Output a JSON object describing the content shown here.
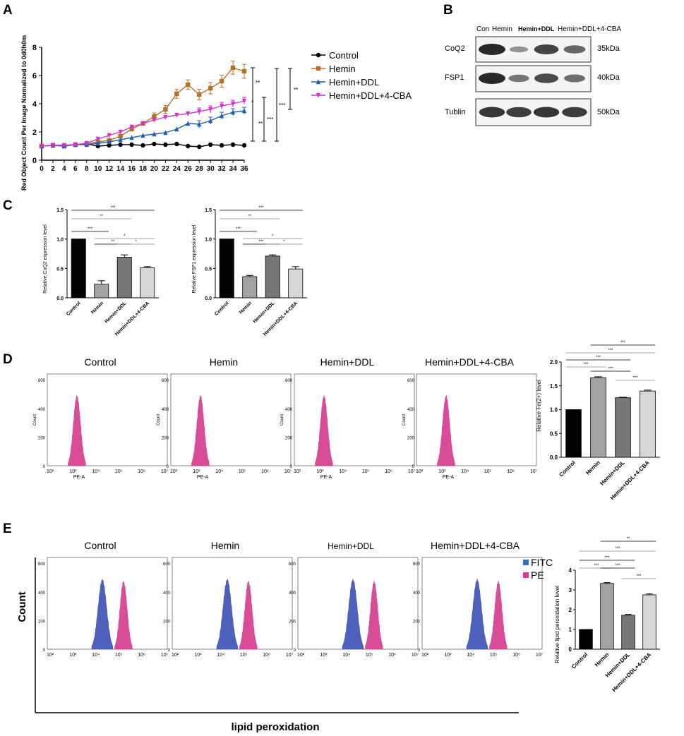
{
  "panel_labels": {
    "a": "A",
    "b": "B",
    "c": "C",
    "d": "D",
    "e": "E"
  },
  "colors": {
    "control": "#000000",
    "hemin": "#b3722a",
    "hemin_ddl": "#1f5fb4",
    "hemin_ddl_cba": "#d036c8",
    "hist_pink": "#d5398d",
    "hist_blue": "#3a4fb4",
    "bar_control": "#000000",
    "bar_hemin": "#a3a3a3",
    "bar_ddl": "#777777",
    "bar_cba": "#d7d7d7"
  },
  "chart_data": [
    {
      "id": "A",
      "type": "line",
      "ylabel": "Red Object Count Per Image Normalized to 0d0h0m",
      "xlabel": "",
      "x": [
        0,
        2,
        4,
        6,
        8,
        10,
        12,
        14,
        16,
        18,
        20,
        22,
        24,
        26,
        28,
        30,
        32,
        34,
        36
      ],
      "xlim": [
        0,
        36
      ],
      "ylim": [
        0,
        8
      ],
      "yticks": [
        "0",
        "2",
        "4",
        "6",
        "8"
      ],
      "xticks": [
        "0",
        "2",
        "4",
        "6",
        "8",
        "10",
        "12",
        "14",
        "16",
        "18",
        "20",
        "22",
        "24",
        "26",
        "28",
        "30",
        "32",
        "34",
        "36"
      ],
      "series": [
        {
          "name": "Control",
          "marker": "circle",
          "color_key": "control",
          "values": [
            1.0,
            1.05,
            1.05,
            1.1,
            1.15,
            1.0,
            1.05,
            1.1,
            1.1,
            1.05,
            1.15,
            1.1,
            1.15,
            1.0,
            0.95,
            1.1,
            1.05,
            1.1,
            1.05
          ]
        },
        {
          "name": "Hemin",
          "marker": "square",
          "color_key": "hemin",
          "values": [
            1.0,
            1.05,
            1.0,
            1.1,
            1.15,
            1.3,
            1.4,
            1.7,
            2.2,
            2.6,
            3.1,
            3.6,
            4.7,
            5.35,
            4.65,
            5.1,
            5.6,
            6.55,
            6.3
          ]
        },
        {
          "name": "Hemin+DDL",
          "marker": "triangle",
          "color_key": "hemin_ddl",
          "values": [
            1.0,
            1.05,
            1.0,
            1.1,
            1.1,
            1.2,
            1.3,
            1.45,
            1.6,
            1.75,
            1.85,
            1.95,
            2.2,
            2.6,
            2.55,
            2.8,
            3.15,
            3.4,
            3.5
          ]
        },
        {
          "name": "Hemin+DDL+4-CBA",
          "marker": "triangle-down",
          "color_key": "hemin_ddl_cba",
          "values": [
            1.0,
            1.05,
            1.05,
            1.1,
            1.2,
            1.5,
            1.75,
            2.0,
            2.35,
            2.6,
            2.85,
            3.05,
            3.2,
            3.3,
            3.45,
            3.6,
            3.85,
            4.0,
            4.2
          ]
        }
      ],
      "annotations": [
        "**",
        "*",
        "**",
        "***",
        "***",
        "**"
      ]
    },
    {
      "id": "C1",
      "type": "bar",
      "ylabel": "Relative CoQ2 expression level",
      "categories": [
        "Control",
        "Hemin",
        "Hemin+DDL",
        "Hemin+DDL+4-CBA"
      ],
      "values": [
        1.0,
        0.23,
        0.69,
        0.51
      ],
      "errors": [
        0,
        0.06,
        0.04,
        0.02
      ],
      "ylim": [
        0,
        1.5
      ],
      "yticks": [
        "0.0",
        "0.5",
        "1.0",
        "1.5"
      ],
      "significance": [
        "***",
        "**",
        "***",
        "*",
        "**",
        "*"
      ]
    },
    {
      "id": "C2",
      "type": "bar",
      "ylabel": "Relative FSP1 expression level",
      "categories": [
        "Control",
        "Hemin",
        "Hemin+DDL",
        "Hemin+DDL+4-CBA"
      ],
      "values": [
        1.0,
        0.36,
        0.71,
        0.49
      ],
      "errors": [
        0,
        0.02,
        0.02,
        0.04
      ],
      "ylim": [
        0,
        1.5
      ],
      "yticks": [
        "0.0",
        "0.5",
        "1.0",
        "1.5"
      ],
      "significance": [
        "***",
        "**",
        "***",
        "*",
        "***",
        "*"
      ]
    },
    {
      "id": "D",
      "type": "bar",
      "ylabel": "Relative Fe(2+) level",
      "categories": [
        "Control",
        "Hemin",
        "Hemin+DDL",
        "Hemin+DDL+4-CBA"
      ],
      "values": [
        1.0,
        1.67,
        1.25,
        1.39
      ],
      "errors": [
        0,
        0.02,
        0.01,
        0.02
      ],
      "ylim": [
        0,
        2.0
      ],
      "yticks": [
        "0.0",
        "0.5",
        "1.0",
        "1.5",
        "2.0"
      ],
      "significance": [
        "***",
        "***",
        "***",
        "***",
        "***",
        "***"
      ]
    },
    {
      "id": "E",
      "type": "bar",
      "ylabel": "Relative lipid peroxidation level",
      "categories": [
        "Control",
        "Hemin",
        "Hemin+DDL",
        "Hemin+DDL+4-CBA"
      ],
      "values": [
        1.0,
        3.33,
        1.72,
        2.75
      ],
      "errors": [
        0,
        0.04,
        0.04,
        0.05
      ],
      "ylim": [
        0,
        4
      ],
      "yticks": [
        "0",
        "1",
        "2",
        "3",
        "4"
      ],
      "significance": [
        "**",
        "***",
        "***",
        "***",
        "***",
        "***"
      ]
    }
  ],
  "blot": {
    "lanes": [
      "Con",
      "Hemin",
      "Hemin+DDL",
      "Hemin+DDL+4-CBA"
    ],
    "rows": [
      {
        "label": "CoQ2",
        "size": "35kDa",
        "intensity": [
          1.0,
          0.25,
          0.8,
          0.55
        ]
      },
      {
        "label": "FSP1",
        "size": "40kDa",
        "intensity": [
          1.0,
          0.45,
          0.75,
          0.5
        ]
      },
      {
        "label": "Tublin",
        "size": "50kDa",
        "intensity": [
          0.9,
          0.85,
          0.9,
          0.85
        ]
      }
    ]
  },
  "flow_d": {
    "titles": [
      "Control",
      "Hemin",
      "Hemin+DDL",
      "Hemin+DDL+4-CBA"
    ],
    "y_label": "Count",
    "x_label": "PE-A",
    "yticks": [
      "0",
      "200",
      "400",
      "600"
    ],
    "xticks": [
      "10²",
      "10³",
      "10⁴",
      "10⁵",
      "10⁶",
      "10⁷"
    ]
  },
  "flow_e": {
    "titles": [
      "Control",
      "Hemin",
      "Hemin+DDL",
      "Hemin+DDL+4-CBA"
    ],
    "y_label": "Count",
    "x_label": "lipid peroxidation",
    "yticks": [
      "0",
      "200",
      "400",
      "600"
    ],
    "xticks": [
      "10²",
      "10³",
      "10⁴",
      "10⁵",
      "10⁶",
      "10⁷"
    ],
    "legend": [
      "FITC",
      "PE"
    ]
  }
}
